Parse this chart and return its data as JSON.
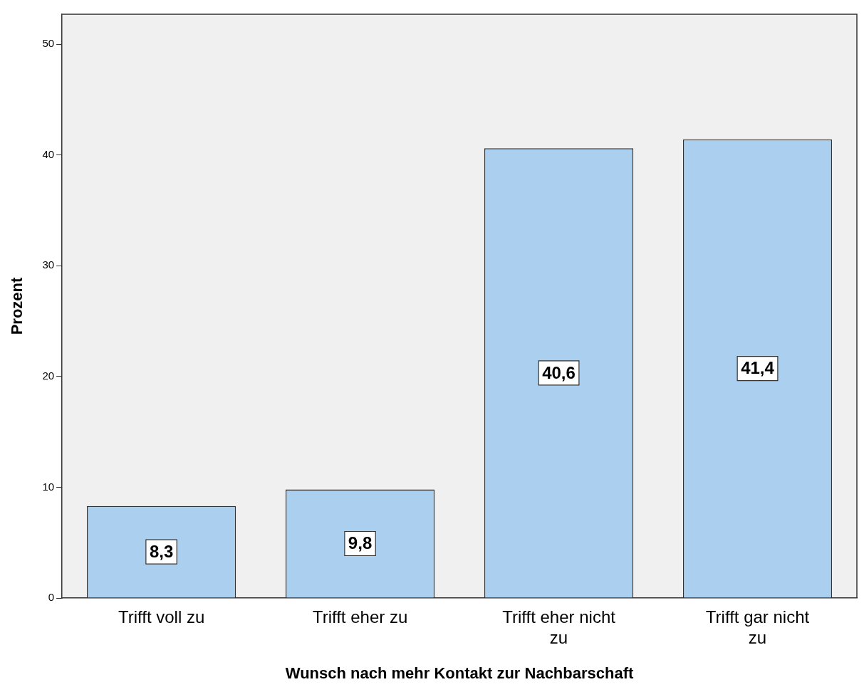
{
  "chart_data": {
    "type": "bar",
    "xlabel": "Wunsch nach mehr Kontakt zur Nachbarschaft",
    "ylabel": "Prozent",
    "categories": [
      "Trifft voll zu",
      "Trifft eher zu",
      "Trifft eher nicht zu",
      "Trifft gar nicht zu"
    ],
    "values": [
      8.3,
      9.8,
      40.6,
      41.4
    ],
    "value_labels": [
      "8,3",
      "9,8",
      "40,6",
      "41,4"
    ],
    "color": "#abcfee",
    "ylim": [
      0,
      52.7
    ],
    "yticks": [
      0,
      10,
      20,
      30,
      40,
      50
    ],
    "grid": false,
    "legend": false
  }
}
